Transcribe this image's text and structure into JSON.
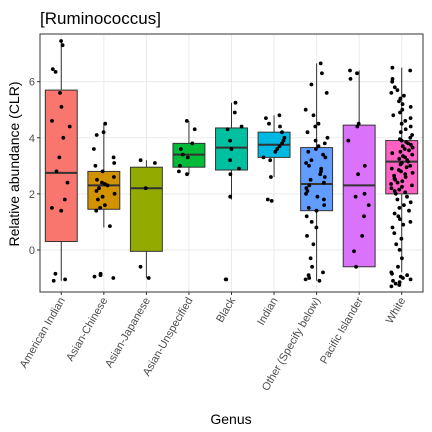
{
  "chart_data": {
    "type": "box",
    "title": "[Ruminococcus]",
    "xlabel": "Genus",
    "ylabel": "Relative abundance (CLR)",
    "ylim": [
      -1.5,
      7.7
    ],
    "yticks": [
      0,
      2,
      4,
      6
    ],
    "grid": true,
    "legend": "none",
    "categories": [
      "American Indian",
      "Asian-Chinese",
      "Asian-Japanese",
      "Asian-Unspecified",
      "Black",
      "Indian",
      "Other (Specify below)",
      "Pacific Islander",
      "White"
    ],
    "colors": [
      "#F8766D",
      "#D39200",
      "#93AA00",
      "#00BA38",
      "#00C19F",
      "#00B9E3",
      "#619CFF",
      "#DB72FB",
      "#FF61C3"
    ],
    "boxes": [
      {
        "category": "American Indian",
        "q1": 0.3,
        "median": 2.75,
        "q3": 5.7,
        "whisker_low": -1.1,
        "whisker_high": 7.45
      },
      {
        "category": "Asian-Chinese",
        "q1": 1.45,
        "median": 2.3,
        "q3": 2.8,
        "whisker_low": 0.8,
        "whisker_high": 4.5
      },
      {
        "category": "Asian-Japanese",
        "q1": -0.05,
        "median": 2.2,
        "q3": 2.95,
        "whisker_low": -1.0,
        "whisker_high": 3.2
      },
      {
        "category": "Asian-Unspecified",
        "q1": 2.95,
        "median": 3.4,
        "q3": 3.8,
        "whisker_low": 2.7,
        "whisker_high": 4.6
      },
      {
        "category": "Black",
        "q1": 2.85,
        "median": 3.65,
        "q3": 4.35,
        "whisker_low": 1.8,
        "whisker_high": 5.25
      },
      {
        "category": "Indian",
        "q1": 3.3,
        "median": 3.75,
        "q3": 4.2,
        "whisker_low": 2.6,
        "whisker_high": 4.8
      },
      {
        "category": "Other (Specify below)",
        "q1": 1.4,
        "median": 2.35,
        "q3": 3.65,
        "whisker_low": -1.1,
        "whisker_high": 6.65
      },
      {
        "category": "Pacific Islander",
        "q1": -0.6,
        "median": 2.3,
        "q3": 4.45,
        "whisker_low": -0.6,
        "whisker_high": 6.4
      },
      {
        "category": "White",
        "q1": 2.0,
        "median": 3.15,
        "q3": 3.9,
        "whisker_low": -0.8,
        "whisker_high": 6.5
      }
    ],
    "points": [
      {
        "category": "American Indian",
        "y": [
          7.45,
          7.3,
          6.45,
          6.35,
          5.6,
          5.1,
          4.6,
          4.4,
          4.0,
          3.3,
          2.8,
          2.4,
          1.8,
          1.5,
          1.4,
          -0.85,
          -1.05,
          -1.1
        ]
      },
      {
        "category": "Asian-Chinese",
        "y": [
          4.5,
          4.2,
          4.1,
          3.6,
          3.3,
          3.1,
          3.0,
          2.8,
          2.6,
          2.5,
          2.4,
          2.35,
          2.3,
          2.2,
          2.1,
          2.0,
          1.9,
          1.8,
          1.6,
          1.5,
          1.4,
          0.85,
          -0.85,
          -0.9,
          -0.95,
          -1.0
        ]
      },
      {
        "category": "Asian-Japanese",
        "y": [
          3.2,
          3.1,
          2.2,
          -0.6,
          -1.0
        ]
      },
      {
        "category": "Asian-Unspecified",
        "y": [
          4.6,
          4.3,
          3.8,
          3.6,
          3.4,
          3.3,
          3.0,
          2.8,
          2.7
        ]
      },
      {
        "category": "Black",
        "y": [
          5.25,
          4.9,
          4.4,
          4.3,
          3.9,
          3.6,
          3.2,
          2.9,
          2.7,
          1.9,
          -1.05,
          -1.05
        ]
      },
      {
        "category": "Indian",
        "y": [
          4.8,
          4.7,
          4.5,
          4.4,
          4.2,
          4.0,
          3.9,
          3.8,
          3.7,
          3.6,
          3.5,
          3.3,
          3.2,
          2.6,
          1.8,
          1.75
        ]
      },
      {
        "category": "Other (Specify below)",
        "y": [
          6.65,
          6.3,
          5.9,
          5.6,
          5.0,
          4.8,
          4.5,
          4.4,
          4.2,
          4.0,
          3.9,
          3.8,
          3.7,
          3.6,
          3.5,
          3.4,
          3.3,
          3.2,
          3.1,
          3.0,
          2.9,
          2.8,
          2.7,
          2.6,
          2.5,
          2.4,
          2.3,
          2.2,
          2.1,
          2.0,
          1.9,
          1.8,
          1.6,
          1.5,
          1.4,
          1.2,
          1.0,
          0.8,
          0.5,
          0.2,
          -0.3,
          -0.6,
          -0.8,
          -0.9,
          -1.0,
          -1.05,
          -1.1
        ]
      },
      {
        "category": "Pacific Islander",
        "y": [
          6.4,
          6.3,
          6.1,
          4.5,
          4.4,
          3.9,
          3.0,
          2.7,
          2.0,
          1.9,
          1.6,
          1.2,
          0.5,
          -0.05,
          -0.6
        ]
      },
      {
        "category": "White",
        "y": [
          6.5,
          6.4,
          6.1,
          6.0,
          5.8,
          5.7,
          5.6,
          5.5,
          5.4,
          5.3,
          5.2,
          5.1,
          5.0,
          4.9,
          4.8,
          4.7,
          4.6,
          4.5,
          4.4,
          4.3,
          4.2,
          4.1,
          4.0,
          3.95,
          3.9,
          3.85,
          3.8,
          3.75,
          3.7,
          3.65,
          3.6,
          3.55,
          3.5,
          3.45,
          3.4,
          3.35,
          3.3,
          3.25,
          3.2,
          3.15,
          3.1,
          3.05,
          3.0,
          2.95,
          2.9,
          2.85,
          2.8,
          2.75,
          2.7,
          2.65,
          2.6,
          2.55,
          2.5,
          2.45,
          2.4,
          2.35,
          2.3,
          2.25,
          2.2,
          2.15,
          2.1,
          2.05,
          2.0,
          1.9,
          1.8,
          1.7,
          1.6,
          1.5,
          1.4,
          1.3,
          1.2,
          1.1,
          1.0,
          0.9,
          0.8,
          0.6,
          0.4,
          0.2,
          0.0,
          -0.3,
          -0.6,
          -0.8,
          -0.85,
          -0.9,
          -0.95,
          -1.0,
          -1.05,
          -1.1,
          -1.15,
          -1.2,
          -1.25,
          -1.3
        ]
      }
    ]
  }
}
